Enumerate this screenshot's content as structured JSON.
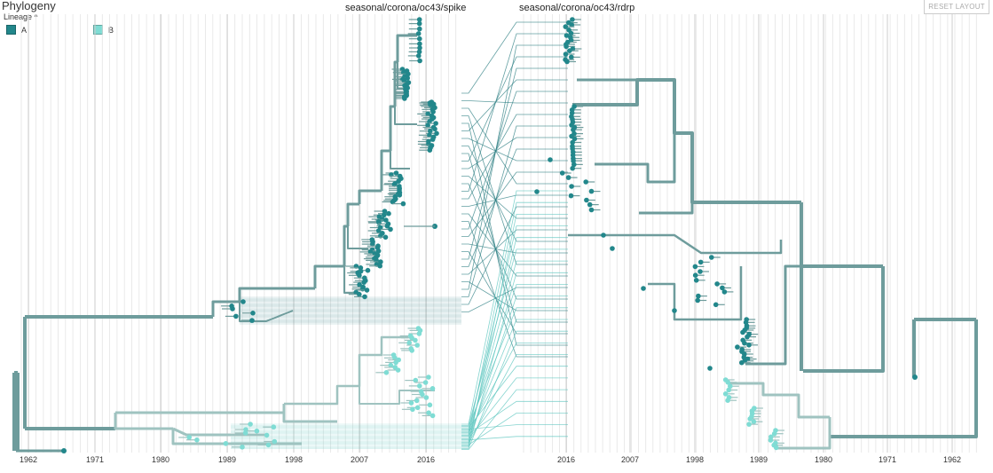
{
  "panel_title": "Phylogeny",
  "legend": {
    "title": "Lineage",
    "chevron": "^",
    "items": [
      {
        "label": "A",
        "color": "#22878b"
      },
      {
        "label": "B",
        "color": "#7fdcd4"
      }
    ]
  },
  "tree_left": {
    "title": "seasonal/corona/oc43/spike"
  },
  "tree_right": {
    "title": "seasonal/corona/oc43/rdrp"
  },
  "reset_button": "RESET LAYOUT",
  "axis_left_years": [
    "1962",
    "1971",
    "1980",
    "1989",
    "1998",
    "2007",
    "2016"
  ],
  "axis_right_years": [
    "2016",
    "2007",
    "1998",
    "1989",
    "1980",
    "1971",
    "1962"
  ],
  "colors": {
    "branch_dark": "#6e9c9c",
    "branch_light": "#9fc3c0",
    "tip_a": "#22878b",
    "tip_b": "#7fdcd4",
    "link_a": "#2e7f83",
    "link_b": "#5cc6bf",
    "grid": "#e4e4e4",
    "grid_major": "#cccccc"
  }
}
